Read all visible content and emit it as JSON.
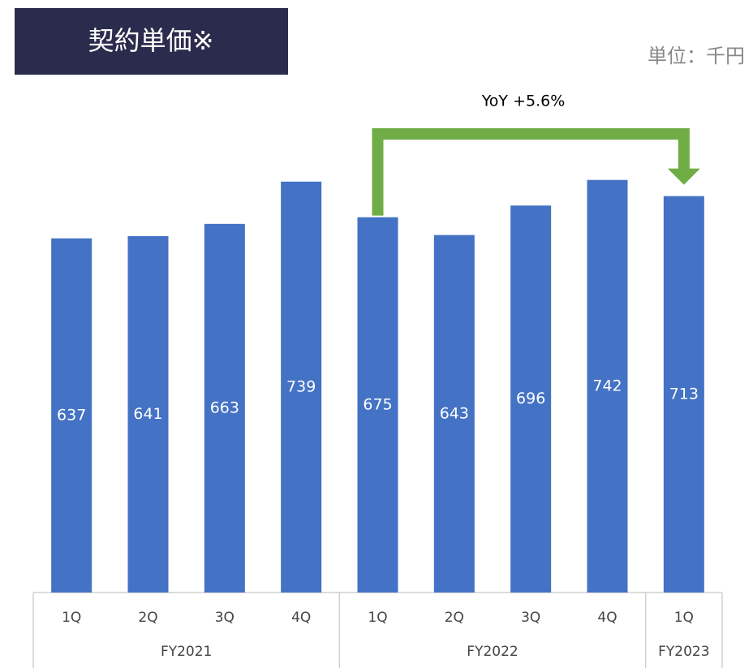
{
  "chart_data": {
    "type": "bar",
    "title": "契約単価※",
    "unit_label": "単位：千円",
    "annotation": "YoY +5.6%",
    "groups": [
      {
        "name": "FY2021",
        "categories": [
          "1Q",
          "2Q",
          "3Q",
          "4Q"
        ]
      },
      {
        "name": "FY2022",
        "categories": [
          "1Q",
          "2Q",
          "3Q",
          "4Q"
        ]
      },
      {
        "name": "FY2023",
        "categories": [
          "1Q"
        ]
      }
    ],
    "values": [
      637,
      641,
      663,
      739,
      675,
      643,
      696,
      742,
      713
    ],
    "color": "#4472c4",
    "annotation_color": "#70ad47",
    "ylim": [
      0,
      800
    ]
  }
}
